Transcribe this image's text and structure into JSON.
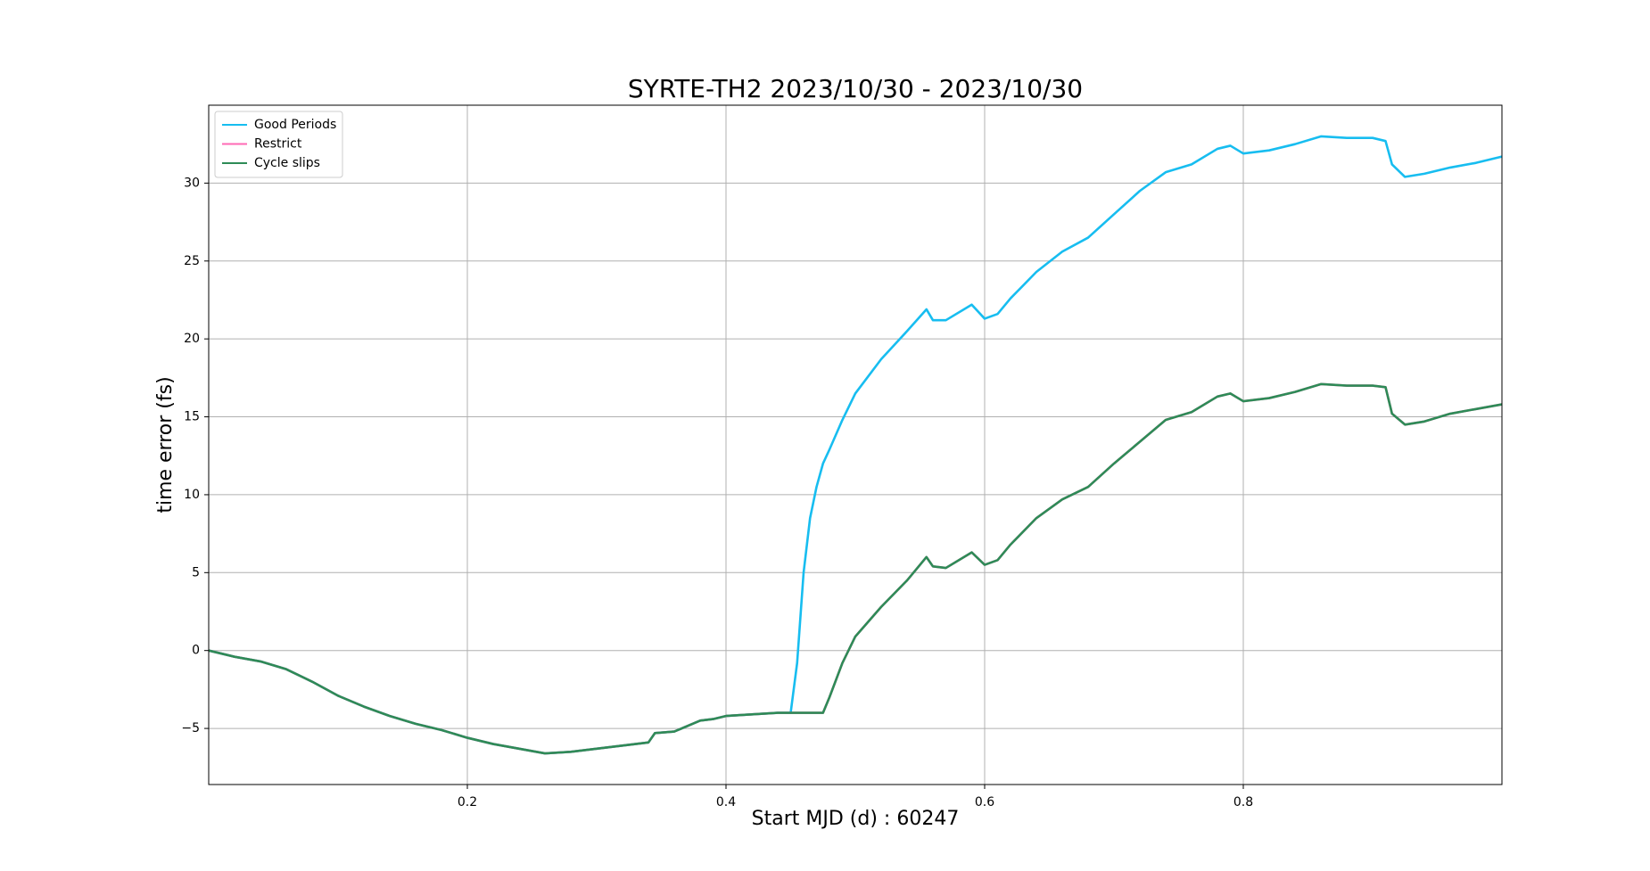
{
  "chart_data": {
    "type": "line",
    "title": "SYRTE-TH2 2023/10/30 - 2023/10/30",
    "x_label": "Start MJD (d) : 60247",
    "y_label": "time error (fs)",
    "x": [
      0,
      0.02,
      0.04,
      0.06,
      0.08,
      0.1,
      0.12,
      0.14,
      0.16,
      0.18,
      0.2,
      0.22,
      0.24,
      0.26,
      0.28,
      0.3,
      0.32,
      0.34,
      0.345,
      0.36,
      0.38,
      0.39,
      0.4,
      0.42,
      0.44,
      0.45,
      0.455,
      0.46,
      0.465,
      0.47,
      0.475,
      0.48,
      0.49,
      0.5,
      0.52,
      0.54,
      0.555,
      0.56,
      0.57,
      0.59,
      0.6,
      0.61,
      0.62,
      0.64,
      0.66,
      0.68,
      0.7,
      0.72,
      0.74,
      0.76,
      0.78,
      0.79,
      0.8,
      0.82,
      0.84,
      0.86,
      0.88,
      0.9,
      0.91,
      0.915,
      0.925,
      0.94,
      0.96,
      0.98,
      1.0
    ],
    "series": [
      {
        "name": "Good Periods",
        "color": "#17bdf0",
        "values": [
          0,
          -0.4,
          -0.7,
          -1.2,
          -2.0,
          -2.9,
          -3.6,
          -4.2,
          -4.7,
          -5.1,
          -5.6,
          -6.0,
          -6.3,
          -6.6,
          -6.5,
          -6.3,
          -6.1,
          -5.9,
          -5.3,
          -5.2,
          -4.5,
          -4.4,
          -4.2,
          -4.1,
          -4.0,
          -4.0,
          -0.8,
          5.0,
          8.5,
          10.5,
          12.0,
          12.9,
          14.8,
          16.5,
          18.7,
          20.5,
          21.9,
          21.2,
          21.2,
          22.2,
          21.3,
          21.6,
          22.6,
          24.3,
          25.6,
          26.5,
          28.0,
          29.5,
          30.7,
          31.2,
          32.2,
          32.4,
          31.9,
          32.1,
          32.5,
          33.0,
          32.9,
          32.9,
          32.7,
          31.2,
          30.4,
          30.6,
          31.0,
          31.3,
          31.7
        ]
      },
      {
        "name": "Restrict",
        "color": "#ff69b4",
        "values": [
          0,
          -0.4,
          -0.7,
          -1.2,
          -2.0,
          -2.9,
          -3.6,
          -4.2,
          -4.7,
          -5.1,
          -5.6,
          -6.0,
          -6.3,
          -6.6,
          -6.5,
          -6.3,
          -6.1,
          -5.9,
          -5.3,
          -5.2,
          -4.5,
          -4.4,
          -4.2,
          -4.1,
          -4.0,
          -4.0,
          -4.0,
          -4.0,
          -4.0,
          -4.0,
          -4.0,
          -3.0,
          -0.8,
          0.9,
          2.8,
          4.5,
          6.0,
          5.4,
          5.3,
          6.3,
          5.5,
          5.8,
          6.8,
          8.5,
          9.7,
          10.5,
          12.0,
          13.4,
          14.8,
          15.3,
          16.3,
          16.5,
          16.0,
          16.2,
          16.6,
          17.1,
          17.0,
          17.0,
          16.9,
          15.2,
          14.5,
          14.7,
          15.2,
          15.5,
          15.8
        ]
      },
      {
        "name": "Cycle slips",
        "color": "#2e8b57",
        "values": [
          0,
          -0.4,
          -0.7,
          -1.2,
          -2.0,
          -2.9,
          -3.6,
          -4.2,
          -4.7,
          -5.1,
          -5.6,
          -6.0,
          -6.3,
          -6.6,
          -6.5,
          -6.3,
          -6.1,
          -5.9,
          -5.3,
          -5.2,
          -4.5,
          -4.4,
          -4.2,
          -4.1,
          -4.0,
          -4.0,
          -4.0,
          -4.0,
          -4.0,
          -4.0,
          -4.0,
          -3.0,
          -0.8,
          0.9,
          2.8,
          4.5,
          6.0,
          5.4,
          5.3,
          6.3,
          5.5,
          5.8,
          6.8,
          8.5,
          9.7,
          10.5,
          12.0,
          13.4,
          14.8,
          15.3,
          16.3,
          16.5,
          16.0,
          16.2,
          16.6,
          17.1,
          17.0,
          17.0,
          16.9,
          15.2,
          14.5,
          14.7,
          15.2,
          15.5,
          15.8
        ]
      }
    ],
    "xlim": [
      0,
      1
    ],
    "xticks": [
      0.2,
      0.4,
      0.6,
      0.8
    ],
    "ylim": [
      -8.6,
      35.0
    ],
    "yticks": [
      {
        "value": -5,
        "label": "−5"
      },
      0,
      5,
      10,
      15,
      20,
      25,
      30
    ],
    "grid": true,
    "legend": "upper-left"
  }
}
